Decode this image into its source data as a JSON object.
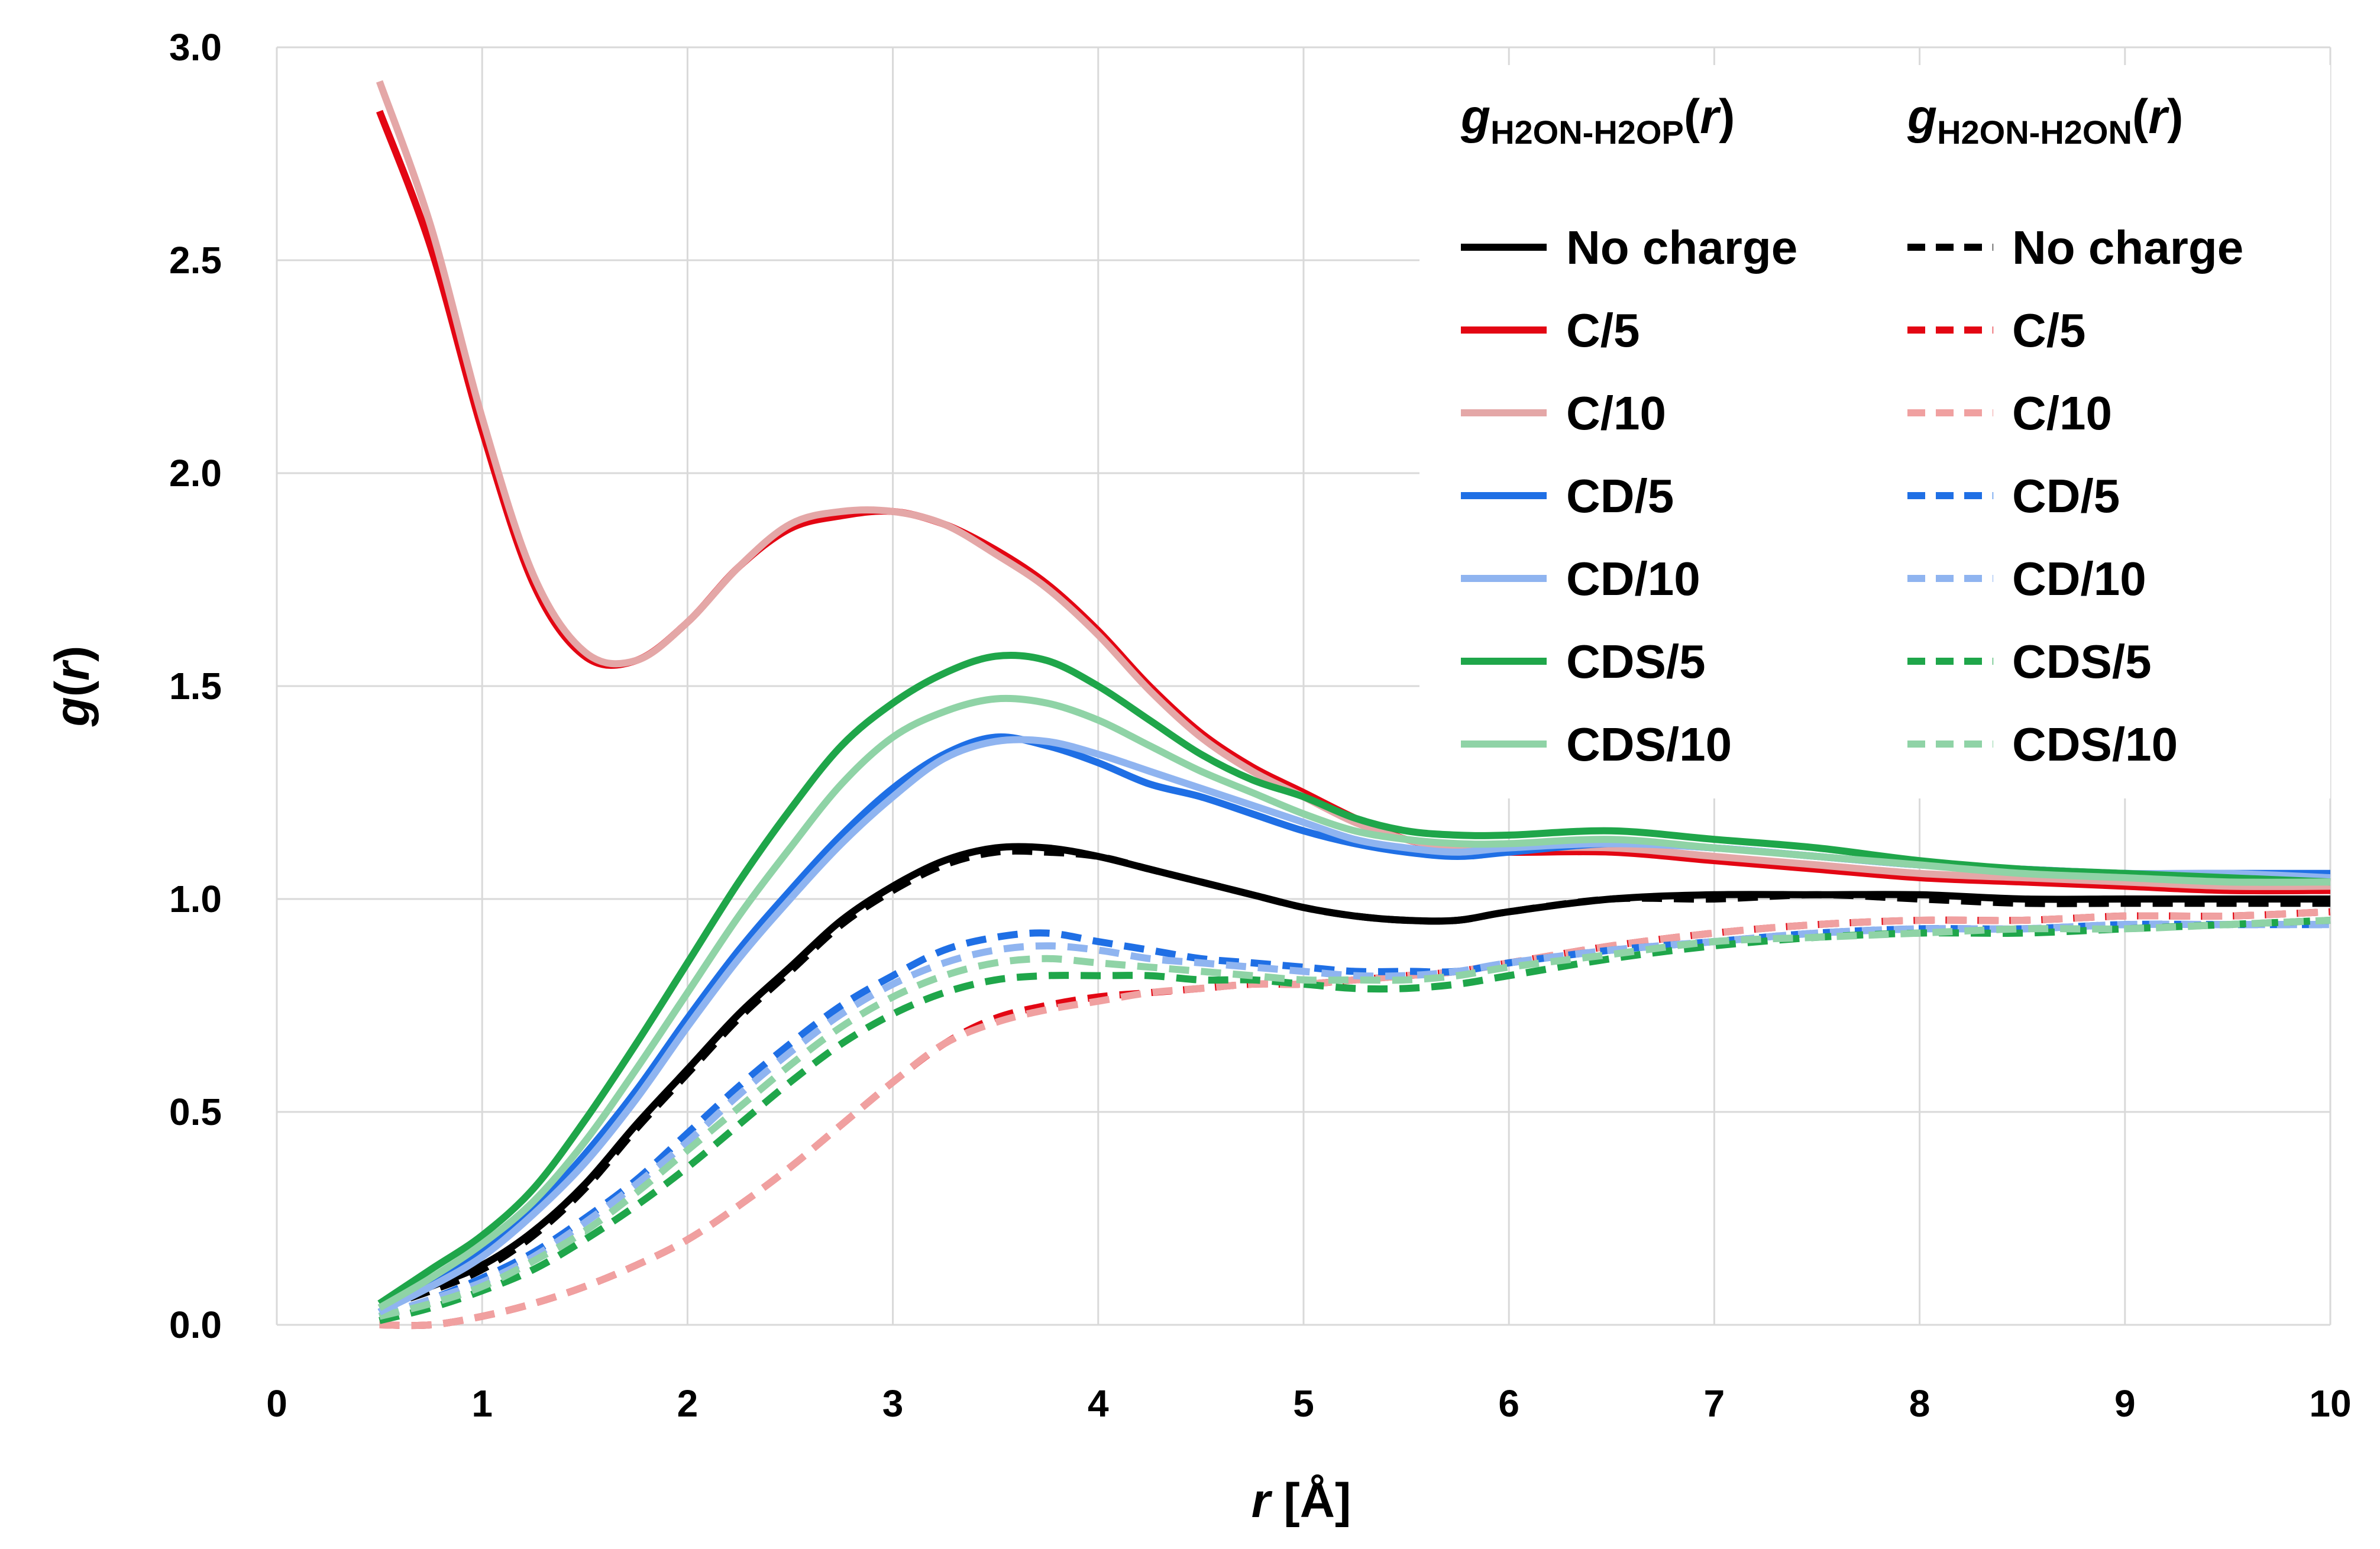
{
  "chart_data": {
    "type": "line",
    "xlabel_italic": "r",
    "xlabel_rest": " [Å]",
    "ylabel_italic": "g",
    "ylabel_open": "(",
    "ylabel_arg": "r",
    "ylabel_close": ")",
    "xlim": [
      0,
      10
    ],
    "ylim": [
      0,
      3
    ],
    "xticks": [
      "0",
      "1",
      "2",
      "3",
      "4",
      "5",
      "6",
      "7",
      "8",
      "9",
      "10"
    ],
    "yticks": [
      "0.0",
      "0.5",
      "1.0",
      "1.5",
      "2.0",
      "2.5",
      "3.0"
    ],
    "grid": true,
    "legend_position": "top-right",
    "legend": {
      "col1_g": "g",
      "col1_sub": "H2ON-H2OP",
      "col1_arg": "r",
      "col2_g": "g",
      "col2_sub": "H2ON-H2ON",
      "col2_arg": "r"
    },
    "x": [
      0.5,
      0.75,
      1.0,
      1.25,
      1.5,
      1.75,
      2.0,
      2.25,
      2.5,
      2.75,
      3.0,
      3.25,
      3.5,
      3.75,
      4.0,
      4.25,
      4.5,
      4.75,
      5.0,
      5.25,
      5.5,
      5.75,
      6.0,
      6.5,
      7.0,
      7.5,
      8.0,
      8.5,
      9.0,
      9.5,
      10.0
    ],
    "series": [
      {
        "name": "No charge",
        "group": "H2ON-H2OP",
        "color": "#000000",
        "dashed": false,
        "values": [
          0.04,
          0.09,
          0.14,
          0.22,
          0.33,
          0.47,
          0.6,
          0.73,
          0.84,
          0.95,
          1.03,
          1.09,
          1.12,
          1.12,
          1.1,
          1.07,
          1.04,
          1.01,
          0.98,
          0.96,
          0.95,
          0.95,
          0.97,
          1.0,
          1.01,
          1.01,
          1.01,
          1.0,
          1.0,
          1.0,
          1.0
        ]
      },
      {
        "name": "C/5",
        "group": "H2ON-H2OP",
        "color": "#e30613",
        "dashed": false,
        "values": [
          2.85,
          2.53,
          2.1,
          1.74,
          1.57,
          1.56,
          1.65,
          1.78,
          1.87,
          1.9,
          1.91,
          1.88,
          1.82,
          1.74,
          1.63,
          1.5,
          1.39,
          1.31,
          1.25,
          1.19,
          1.14,
          1.12,
          1.11,
          1.11,
          1.09,
          1.07,
          1.05,
          1.04,
          1.03,
          1.02,
          1.02
        ]
      },
      {
        "name": "C/10",
        "group": "H2ON-H2OP",
        "color": "#e4a7a7",
        "dashed": false,
        "values": [
          2.92,
          2.58,
          2.13,
          1.76,
          1.58,
          1.56,
          1.65,
          1.78,
          1.88,
          1.91,
          1.91,
          1.88,
          1.81,
          1.73,
          1.62,
          1.49,
          1.38,
          1.3,
          1.24,
          1.18,
          1.14,
          1.12,
          1.12,
          1.12,
          1.1,
          1.08,
          1.06,
          1.05,
          1.04,
          1.03,
          1.03
        ]
      },
      {
        "name": "CD/5",
        "group": "H2ON-H2OP",
        "color": "#1f6fe5",
        "dashed": false,
        "values": [
          0.03,
          0.1,
          0.17,
          0.27,
          0.4,
          0.55,
          0.72,
          0.88,
          1.02,
          1.15,
          1.26,
          1.34,
          1.38,
          1.36,
          1.32,
          1.27,
          1.24,
          1.2,
          1.16,
          1.13,
          1.11,
          1.1,
          1.11,
          1.13,
          1.12,
          1.1,
          1.08,
          1.07,
          1.06,
          1.06,
          1.06
        ]
      },
      {
        "name": "CD/10",
        "group": "H2ON-H2OP",
        "color": "#8fb4f0",
        "dashed": false,
        "values": [
          0.03,
          0.09,
          0.16,
          0.26,
          0.38,
          0.53,
          0.7,
          0.86,
          1.0,
          1.13,
          1.24,
          1.33,
          1.37,
          1.37,
          1.34,
          1.3,
          1.26,
          1.22,
          1.18,
          1.14,
          1.12,
          1.11,
          1.12,
          1.13,
          1.12,
          1.1,
          1.08,
          1.07,
          1.06,
          1.06,
          1.05
        ]
      },
      {
        "name": "CDS/5",
        "group": "H2ON-H2OP",
        "color": "#1fa64a",
        "dashed": false,
        "values": [
          0.05,
          0.13,
          0.21,
          0.32,
          0.48,
          0.66,
          0.85,
          1.04,
          1.21,
          1.36,
          1.46,
          1.53,
          1.57,
          1.56,
          1.5,
          1.42,
          1.34,
          1.28,
          1.24,
          1.19,
          1.16,
          1.15,
          1.15,
          1.16,
          1.14,
          1.12,
          1.09,
          1.07,
          1.06,
          1.05,
          1.04
        ]
      },
      {
        "name": "CDS/10",
        "group": "H2ON-H2OP",
        "color": "#8fd3a6",
        "dashed": false,
        "values": [
          0.04,
          0.11,
          0.19,
          0.29,
          0.43,
          0.6,
          0.78,
          0.96,
          1.12,
          1.27,
          1.38,
          1.44,
          1.47,
          1.46,
          1.42,
          1.36,
          1.3,
          1.25,
          1.2,
          1.16,
          1.14,
          1.13,
          1.13,
          1.14,
          1.12,
          1.1,
          1.08,
          1.06,
          1.05,
          1.04,
          1.04
        ]
      },
      {
        "name": "No charge",
        "group": "H2ON-H2ON",
        "color": "#000000",
        "dashed": true,
        "values": [
          0.04,
          0.08,
          0.13,
          0.21,
          0.32,
          0.46,
          0.59,
          0.72,
          0.83,
          0.94,
          1.02,
          1.08,
          1.11,
          1.11,
          1.1,
          1.07,
          1.04,
          1.01,
          0.98,
          0.96,
          0.95,
          0.95,
          0.97,
          1.0,
          1.0,
          1.01,
          1.0,
          0.99,
          0.99,
          0.99,
          0.99
        ]
      },
      {
        "name": "C/5",
        "group": "H2ON-H2ON",
        "color": "#e30613",
        "dashed": true,
        "values": [
          0.0,
          0.0,
          0.02,
          0.05,
          0.09,
          0.14,
          0.2,
          0.28,
          0.37,
          0.47,
          0.57,
          0.66,
          0.72,
          0.75,
          0.77,
          0.78,
          0.79,
          0.8,
          0.8,
          0.81,
          0.82,
          0.83,
          0.85,
          0.89,
          0.92,
          0.94,
          0.95,
          0.95,
          0.96,
          0.96,
          0.97
        ]
      },
      {
        "name": "C/10",
        "group": "H2ON-H2ON",
        "color": "#f0a0a0",
        "dashed": true,
        "values": [
          0.0,
          0.0,
          0.02,
          0.05,
          0.09,
          0.14,
          0.2,
          0.28,
          0.37,
          0.47,
          0.57,
          0.66,
          0.71,
          0.74,
          0.76,
          0.78,
          0.79,
          0.8,
          0.8,
          0.81,
          0.82,
          0.83,
          0.85,
          0.89,
          0.92,
          0.94,
          0.95,
          0.95,
          0.96,
          0.96,
          0.97
        ]
      },
      {
        "name": "CD/5",
        "group": "H2ON-H2ON",
        "color": "#1f6fe5",
        "dashed": true,
        "values": [
          0.02,
          0.06,
          0.11,
          0.17,
          0.25,
          0.34,
          0.45,
          0.56,
          0.66,
          0.75,
          0.82,
          0.88,
          0.91,
          0.92,
          0.9,
          0.88,
          0.86,
          0.85,
          0.84,
          0.83,
          0.83,
          0.83,
          0.85,
          0.88,
          0.9,
          0.92,
          0.93,
          0.93,
          0.94,
          0.94,
          0.94
        ]
      },
      {
        "name": "CD/10",
        "group": "H2ON-H2ON",
        "color": "#8fb4f0",
        "dashed": true,
        "values": [
          0.02,
          0.06,
          0.1,
          0.16,
          0.24,
          0.33,
          0.43,
          0.54,
          0.64,
          0.73,
          0.8,
          0.85,
          0.88,
          0.89,
          0.88,
          0.86,
          0.85,
          0.84,
          0.83,
          0.82,
          0.82,
          0.83,
          0.85,
          0.88,
          0.9,
          0.92,
          0.93,
          0.93,
          0.94,
          0.94,
          0.94
        ]
      },
      {
        "name": "CDS/5",
        "group": "H2ON-H2ON",
        "color": "#1fa64a",
        "dashed": true,
        "values": [
          0.01,
          0.04,
          0.08,
          0.13,
          0.2,
          0.28,
          0.37,
          0.47,
          0.57,
          0.66,
          0.73,
          0.78,
          0.81,
          0.82,
          0.82,
          0.82,
          0.81,
          0.81,
          0.8,
          0.79,
          0.79,
          0.8,
          0.82,
          0.86,
          0.89,
          0.91,
          0.92,
          0.92,
          0.93,
          0.94,
          0.95
        ]
      },
      {
        "name": "CDS/10",
        "group": "H2ON-H2ON",
        "color": "#8fd3a6",
        "dashed": true,
        "values": [
          0.02,
          0.05,
          0.09,
          0.15,
          0.22,
          0.31,
          0.41,
          0.51,
          0.61,
          0.7,
          0.77,
          0.82,
          0.85,
          0.86,
          0.85,
          0.84,
          0.83,
          0.82,
          0.81,
          0.81,
          0.81,
          0.82,
          0.84,
          0.87,
          0.9,
          0.91,
          0.92,
          0.93,
          0.93,
          0.94,
          0.95
        ]
      }
    ]
  }
}
